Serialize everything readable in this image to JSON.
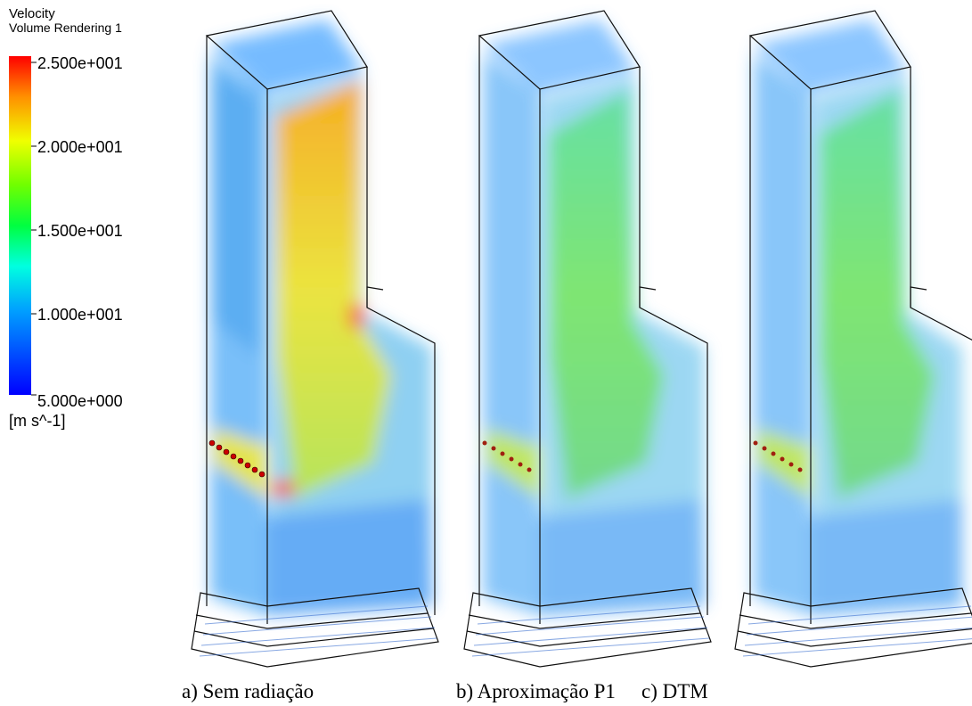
{
  "legend": {
    "title": "Velocity",
    "subtitle": "Volume Rendering 1",
    "ticks": [
      "2.500e+001",
      "2.000e+001",
      "1.500e+001",
      "1.000e+001",
      "5.000e+000"
    ],
    "unit": "[m s^-1]"
  },
  "panels": [
    {
      "caption": "a) Sem radiação"
    },
    {
      "caption": "b) Aproximação P1"
    },
    {
      "caption": "c) DTM"
    }
  ]
}
